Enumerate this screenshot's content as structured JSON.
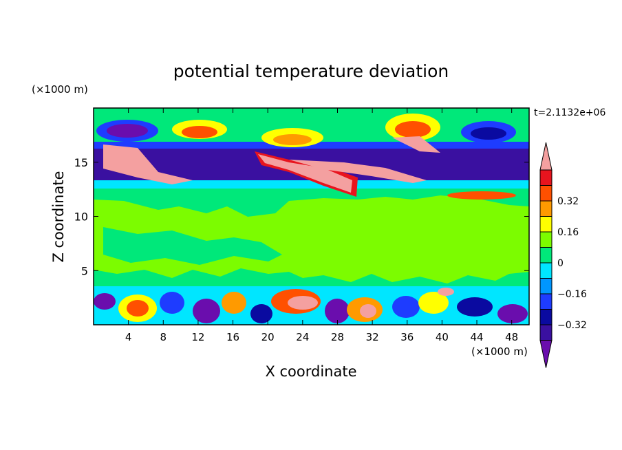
{
  "chart_data": {
    "type": "heatmap",
    "title": "potential temperature deviation",
    "xlabel": "X coordinate",
    "ylabel": "Z coordinate",
    "x_unit": "(×1000 m)",
    "y_unit": "(×1000 m)",
    "time_label": "t=2.1132e+06",
    "xlim": [
      0,
      50
    ],
    "ylim": [
      0,
      20
    ],
    "x_ticks": [
      4,
      8,
      12,
      16,
      20,
      24,
      28,
      32,
      36,
      40,
      44,
      48
    ],
    "y_ticks": [
      5,
      10,
      15
    ],
    "color_levels": [
      {
        "min": null,
        "max": -0.4,
        "color": "#6a0dad"
      },
      {
        "min": -0.4,
        "max": -0.32,
        "color": "#3a10a0"
      },
      {
        "min": -0.32,
        "max": -0.24,
        "color": "#0a0aa0"
      },
      {
        "min": -0.24,
        "max": -0.16,
        "color": "#1e3cff"
      },
      {
        "min": -0.16,
        "max": -0.08,
        "color": "#0096ff"
      },
      {
        "min": -0.08,
        "max": 0.0,
        "color": "#00e6ff"
      },
      {
        "min": 0.0,
        "max": 0.08,
        "color": "#00e87a"
      },
      {
        "min": 0.08,
        "max": 0.16,
        "color": "#7cfc00"
      },
      {
        "min": 0.16,
        "max": 0.24,
        "color": "#ffff00"
      },
      {
        "min": 0.24,
        "max": 0.32,
        "color": "#ff9a00"
      },
      {
        "min": 0.32,
        "max": 0.4,
        "color": "#ff5000"
      },
      {
        "min": 0.4,
        "max": 0.48,
        "color": "#e8141e"
      },
      {
        "min": 0.48,
        "max": null,
        "color": "#f4a0a0"
      }
    ],
    "colorbar_labels": [
      "0.32",
      "0.16",
      "0",
      "−0.16",
      "−0.32"
    ]
  }
}
